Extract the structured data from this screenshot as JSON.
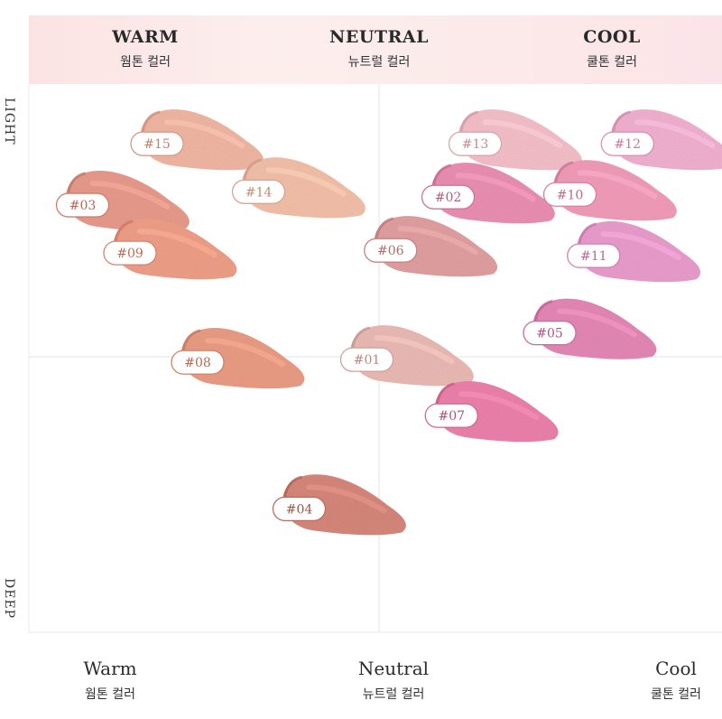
{
  "chart_data": {
    "type": "scatter",
    "title": "",
    "x_axis": {
      "categories": [
        "Warm",
        "Neutral",
        "Cool"
      ],
      "categories_ko": [
        "웜톤 컬러",
        "뉴트럴 컬러",
        "쿨톤 컬러"
      ],
      "header_labels": [
        "WARM",
        "NEUTRAL",
        "COOL"
      ],
      "header_labels_ko": [
        "웜톤 컬러",
        "뉴트럴 컬러",
        "쿨톤 컬러"
      ],
      "range": [
        -1,
        1
      ]
    },
    "y_axis": {
      "top_label": "LIGHT",
      "bottom_label": "DEEP",
      "range": [
        -1,
        1
      ]
    },
    "grid": "center-crosshair",
    "points": [
      {
        "label": "#15",
        "x": -0.64,
        "y": 0.84,
        "color": "#f4b9a6"
      },
      {
        "label": "#14",
        "x": -0.34,
        "y": 0.66,
        "color": "#f7c3ab"
      },
      {
        "label": "#03",
        "x": -0.86,
        "y": 0.61,
        "color": "#eb9d8d"
      },
      {
        "label": "#09",
        "x": -0.72,
        "y": 0.43,
        "color": "#f3a18a"
      },
      {
        "label": "#06",
        "x": 0.05,
        "y": 0.44,
        "color": "#e4a2a3"
      },
      {
        "label": "#01",
        "x": -0.02,
        "y": 0.03,
        "color": "#eebdb7"
      },
      {
        "label": "#08",
        "x": -0.52,
        "y": 0.02,
        "color": "#ee9f86"
      },
      {
        "label": "#04",
        "x": -0.22,
        "y": -0.53,
        "color": "#d9897d"
      },
      {
        "label": "#13",
        "x": 0.3,
        "y": 0.84,
        "color": "#f8c2cc"
      },
      {
        "label": "#02",
        "x": 0.22,
        "y": 0.64,
        "color": "#ee92b5"
      },
      {
        "label": "#12",
        "x": 0.75,
        "y": 0.84,
        "color": "#f5b3d3"
      },
      {
        "label": "#10",
        "x": 0.58,
        "y": 0.65,
        "color": "#f59fbc"
      },
      {
        "label": "#11",
        "x": 0.65,
        "y": 0.42,
        "color": "#ed9fcf"
      },
      {
        "label": "#05",
        "x": 0.52,
        "y": 0.13,
        "color": "#e88ab8"
      },
      {
        "label": "#07",
        "x": 0.23,
        "y": -0.18,
        "color": "#ef83ae"
      }
    ]
  }
}
